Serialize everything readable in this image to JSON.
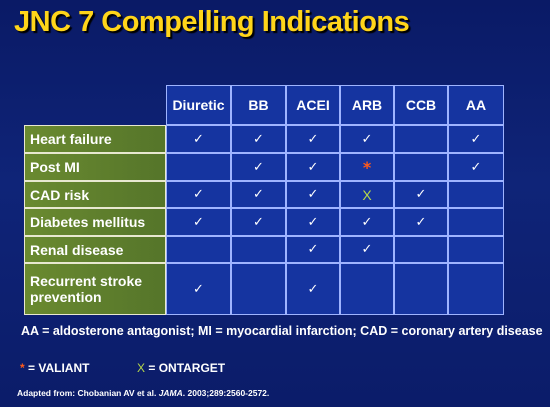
{
  "title": "JNC 7 Compelling Indications",
  "columns": [
    "Diuretic",
    "BB",
    "ACEI",
    "ARB",
    "CCB",
    "AA"
  ],
  "rows": [
    {
      "label": "Heart failure",
      "marks": [
        "check",
        "check",
        "check",
        "check",
        "",
        "check"
      ]
    },
    {
      "label": "Post MI",
      "marks": [
        "",
        "check",
        "check",
        "star",
        "",
        "check"
      ]
    },
    {
      "label": "CAD risk",
      "marks": [
        "check",
        "check",
        "check",
        "x",
        "check",
        ""
      ]
    },
    {
      "label": "Diabetes mellitus",
      "marks": [
        "check",
        "check",
        "check",
        "check",
        "check",
        ""
      ]
    },
    {
      "label": "Renal disease",
      "marks": [
        "",
        "",
        "check",
        "check",
        "",
        ""
      ]
    },
    {
      "label": "Recurrent stroke prevention",
      "marks": [
        "check",
        "",
        "check",
        "",
        "",
        ""
      ]
    }
  ],
  "symbols": {
    "check": "✓",
    "star": "*",
    "x": "X"
  },
  "footnote": "AA = aldosterone antagonist; MI = myocardial infarction; CAD = coronary artery disease",
  "legend": {
    "star_symbol": "*",
    "star_text": " = VALIANT",
    "x_symbol": "X",
    "x_text": " = ONTARGET"
  },
  "source": {
    "prefix": "Adapted from: Chobanian AV et al. ",
    "journal": "JAMA",
    "suffix": ". 2003;289:2560-2572."
  },
  "colors": {
    "background": "#0d1f6e",
    "title": "#ffd51a",
    "cell": "#1534a0",
    "row_header": "#5a7a2a",
    "star": "#ff5a1a",
    "x_mark": "#b6d84a"
  }
}
